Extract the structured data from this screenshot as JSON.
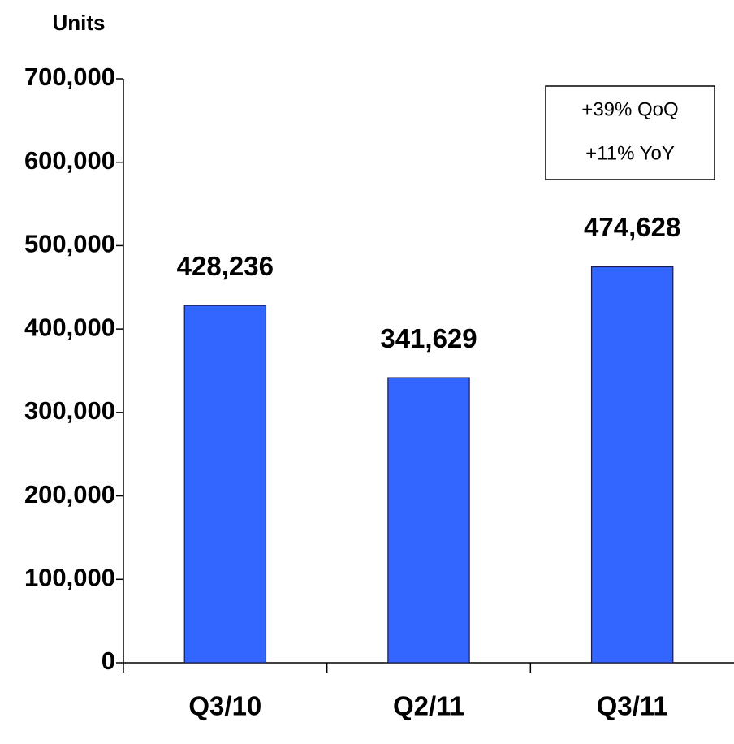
{
  "chart_data": {
    "type": "bar",
    "title": "Units",
    "categories": [
      "Q3/10",
      "Q2/11",
      "Q3/11"
    ],
    "values": [
      428236,
      341629,
      474628
    ],
    "value_labels": [
      "428,236",
      "341,629",
      "474,628"
    ],
    "color": "#3366ff",
    "ylim": [
      0,
      700000
    ],
    "yticks": [
      0,
      {
        "value": 100000,
        "label": "100,000"
      },
      {
        "value": 200000,
        "label": "200,000"
      },
      {
        "value": 300000,
        "label": "300,000"
      },
      {
        "value": 400000,
        "label": "400,000"
      },
      {
        "value": 500000,
        "label": "500,000"
      },
      {
        "value": 600000,
        "label": "600,000"
      },
      {
        "value": 700000,
        "label": "700,000"
      }
    ],
    "annotations": [
      "+39% QoQ",
      "+11% YoY"
    ],
    "grid": false
  }
}
